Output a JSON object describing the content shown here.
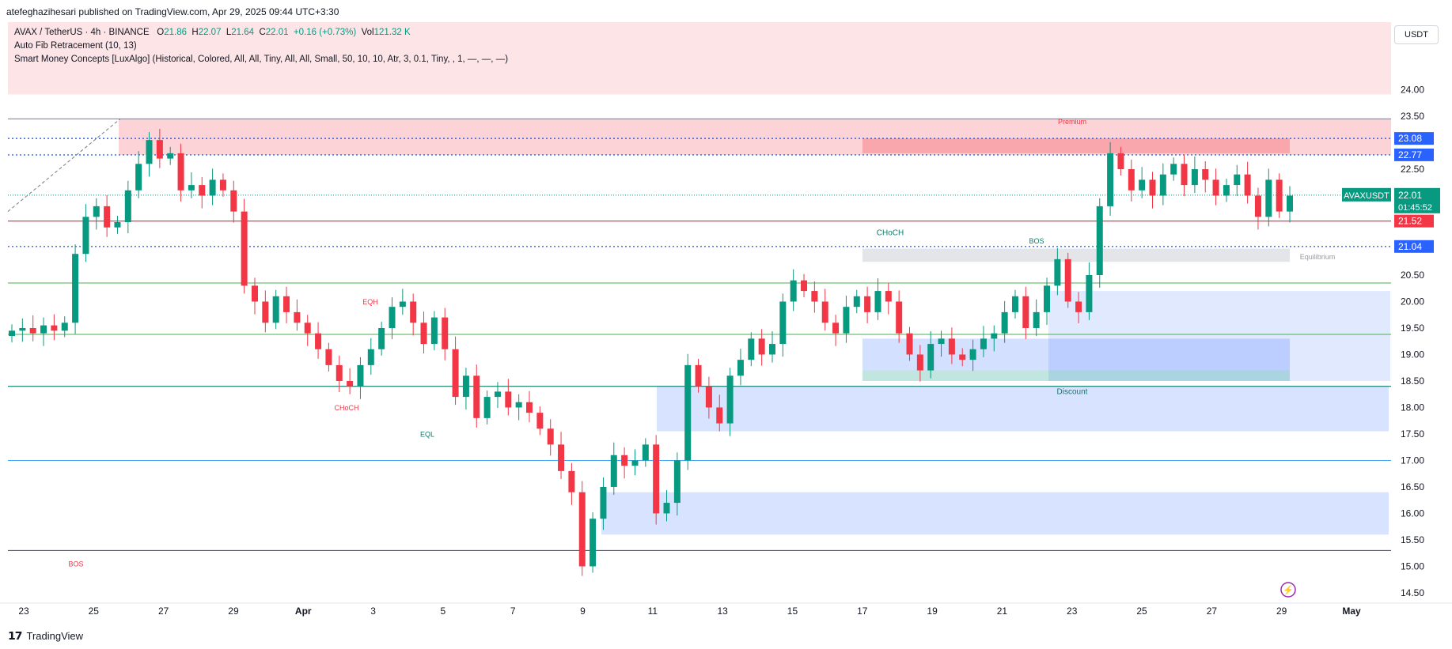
{
  "header": {
    "publisher_line": "atefeghazihesari published on TradingView.com, Apr 29, 2025 09:44 UTC+3:30"
  },
  "legend": {
    "symbol": "AVAX / TetherUS · 4h · BINANCE",
    "o_label": "O",
    "o_value": "21.86",
    "h_label": "H",
    "h_value": "22.07",
    "l_label": "L",
    "l_value": "21.64",
    "c_label": "C",
    "c_value": "22.01",
    "change": "+0.16 (+0.73%)",
    "vol_label": "Vol",
    "vol_value": "121.32 K",
    "indicator1": "Auto Fib Retracement (10, 13)",
    "indicator2": "Smart Money Concepts [LuxAlgo] (Historical, Colored, All, All, Tiny, All, All, Small, 50, 10, 10, Atr, 3, 0.1, Tiny, , 1, —, —, —)"
  },
  "currency": "USDT",
  "footer": {
    "brand": "TradingView"
  },
  "colors": {
    "up": "#089981",
    "down": "#f23645",
    "blue": "#2962ff",
    "premium": "#f23645",
    "discount": "#2962ff"
  },
  "chart_data": {
    "type": "candlestick",
    "symbol": "AVAXUSDT",
    "timeframe": "4h",
    "y_axis": {
      "ticks": [
        24.0,
        23.5,
        22.5,
        20.5,
        20.0,
        19.5,
        19.0,
        18.5,
        18.0,
        17.5,
        17.0,
        16.5,
        16.0,
        15.5,
        15.0,
        14.5
      ],
      "ylim": [
        14.35,
        24.5
      ]
    },
    "x_axis": {
      "ticks": [
        "23",
        "25",
        "27",
        "29",
        "Apr",
        "3",
        "5",
        "7",
        "9",
        "11",
        "13",
        "15",
        "17",
        "19",
        "21",
        "23",
        "25",
        "27",
        "29",
        "May"
      ]
    },
    "price_labels": [
      {
        "value": 23.08,
        "text": "23.08",
        "color": "#2962ff"
      },
      {
        "value": 22.77,
        "text": "22.77",
        "color": "#2962ff"
      },
      {
        "value": 22.01,
        "text": "22.01",
        "color": "#089981",
        "name": "AVAXUSDT",
        "countdown": "01:45:52"
      },
      {
        "value": 21.52,
        "text": "21.52",
        "color": "#f23645"
      },
      {
        "value": 21.04,
        "text": "21.04",
        "color": "#2962ff"
      }
    ],
    "annotations": [
      "Premium",
      "CHoCH",
      "BOS",
      "Equilibrium",
      "Discount",
      "EQH",
      "EQL",
      "CHoCH",
      "BOS"
    ],
    "closes": [
      19.45,
      19.5,
      19.4,
      19.55,
      19.45,
      19.6,
      20.9,
      21.6,
      21.8,
      21.4,
      21.5,
      22.1,
      22.6,
      23.05,
      22.7,
      22.8,
      22.1,
      22.2,
      22.0,
      22.3,
      22.1,
      21.7,
      20.3,
      20.0,
      19.6,
      20.1,
      19.8,
      19.6,
      19.4,
      19.1,
      18.8,
      18.5,
      18.4,
      18.8,
      19.1,
      19.5,
      19.9,
      20.0,
      19.6,
      19.2,
      19.7,
      19.1,
      18.2,
      18.6,
      17.8,
      18.2,
      18.3,
      18.0,
      18.1,
      17.9,
      17.6,
      17.3,
      16.8,
      16.4,
      15.0,
      15.9,
      16.5,
      17.1,
      16.9,
      17.0,
      17.3,
      16.0,
      16.2,
      17.0,
      18.8,
      18.4,
      18.0,
      17.7,
      18.6,
      18.9,
      19.3,
      19.0,
      19.2,
      20.0,
      20.4,
      20.2,
      20.0,
      19.6,
      19.4,
      19.9,
      20.1,
      19.8,
      20.2,
      20.0,
      19.4,
      19.0,
      18.7,
      19.2,
      19.3,
      19.0,
      18.9,
      19.1,
      19.3,
      19.4,
      19.8,
      20.1,
      19.5,
      19.8,
      20.3,
      20.8,
      20.0,
      19.8,
      20.5,
      21.8,
      22.8,
      22.5,
      22.1,
      22.3,
      22.0,
      22.4,
      22.6,
      22.2,
      22.5,
      22.3,
      22.0,
      22.2,
      22.4,
      22.0,
      21.6,
      22.3,
      21.7,
      22.0
    ],
    "zones": [
      "Premium 23.08-23.45",
      "Equilibrium 20.65-21.0",
      "Discount 18.5-18.6"
    ]
  }
}
